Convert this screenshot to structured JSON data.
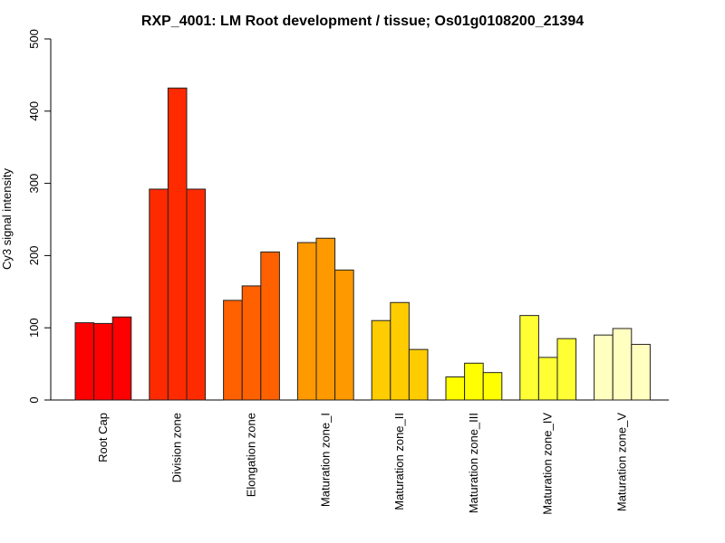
{
  "chart_data": {
    "type": "bar",
    "title": "RXP_4001: LM Root development / tissue; Os01g0108200_21394",
    "xlabel": "",
    "ylabel": "Cy3 signal intensity",
    "ylim": [
      0,
      500
    ],
    "yticks": [
      0,
      100,
      200,
      300,
      400,
      500
    ],
    "grid": false,
    "categories": [
      "Root Cap",
      "Division zone",
      "Elongation zone",
      "Maturation zone_I",
      "Maturation zone_II",
      "Maturation zone_III",
      "Maturation zone_IV",
      "Maturation zone_V"
    ],
    "colors": [
      "#ff0000",
      "#ff2a00",
      "#ff6000",
      "#ff9900",
      "#ffcc00",
      "#ffff00",
      "#ffff33",
      "#ffffc0"
    ],
    "values": [
      [
        107,
        106,
        115
      ],
      [
        292,
        432,
        292
      ],
      [
        138,
        158,
        205
      ],
      [
        218,
        224,
        180
      ],
      [
        110,
        135,
        70
      ],
      [
        32,
        51,
        38
      ],
      [
        117,
        59,
        85
      ],
      [
        90,
        99,
        77
      ]
    ]
  }
}
